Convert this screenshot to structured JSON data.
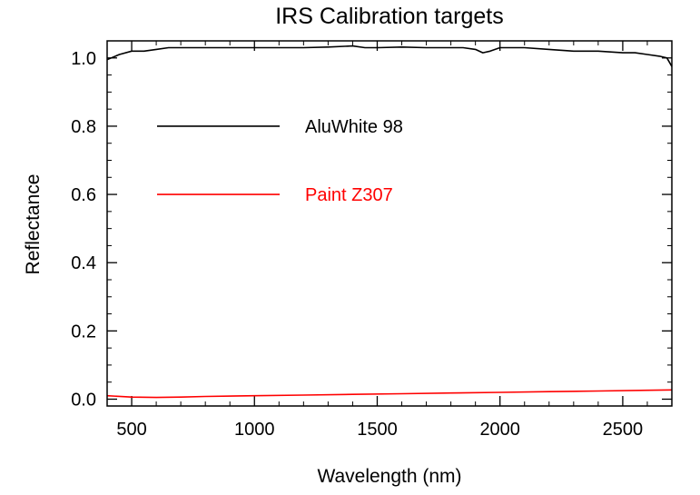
{
  "chart_data": {
    "type": "line",
    "title": "IRS Calibration targets",
    "xlabel": "Wavelength (nm)",
    "ylabel": "Reflectance",
    "xlim": [
      400,
      2700
    ],
    "ylim": [
      -0.02,
      1.05
    ],
    "xticks": [
      500,
      1000,
      1500,
      2000,
      2500
    ],
    "xtick_labels": [
      "500",
      "1000",
      "1500",
      "2000",
      "2500"
    ],
    "yticks": [
      0.0,
      0.2,
      0.4,
      0.6,
      0.8,
      1.0
    ],
    "ytick_labels": [
      "0.0",
      "0.2",
      "0.4",
      "0.6",
      "0.8",
      "1.0"
    ],
    "grid": false,
    "legend_position": "upper-left",
    "series": [
      {
        "name": "AluWhite 98",
        "color": "#000000",
        "x": [
          400,
          450,
          500,
          550,
          600,
          650,
          700,
          800,
          900,
          1000,
          1100,
          1200,
          1300,
          1400,
          1450,
          1500,
          1600,
          1700,
          1800,
          1850,
          1900,
          1930,
          1960,
          2000,
          2100,
          2200,
          2300,
          2400,
          2500,
          2550,
          2600,
          2650,
          2680,
          2700
        ],
        "y": [
          0.995,
          1.01,
          1.02,
          1.02,
          1.025,
          1.03,
          1.03,
          1.03,
          1.03,
          1.03,
          1.03,
          1.03,
          1.032,
          1.035,
          1.03,
          1.03,
          1.032,
          1.03,
          1.03,
          1.03,
          1.025,
          1.015,
          1.02,
          1.03,
          1.03,
          1.025,
          1.02,
          1.02,
          1.015,
          1.015,
          1.01,
          1.005,
          1.0,
          0.975
        ]
      },
      {
        "name": "Paint Z307",
        "color": "#ff0000",
        "x": [
          400,
          500,
          600,
          700,
          800,
          1000,
          1200,
          1400,
          1600,
          1800,
          2000,
          2200,
          2400,
          2600,
          2700
        ],
        "y": [
          0.01,
          0.006,
          0.005,
          0.006,
          0.008,
          0.01,
          0.012,
          0.014,
          0.016,
          0.018,
          0.02,
          0.022,
          0.024,
          0.026,
          0.027
        ]
      }
    ]
  }
}
